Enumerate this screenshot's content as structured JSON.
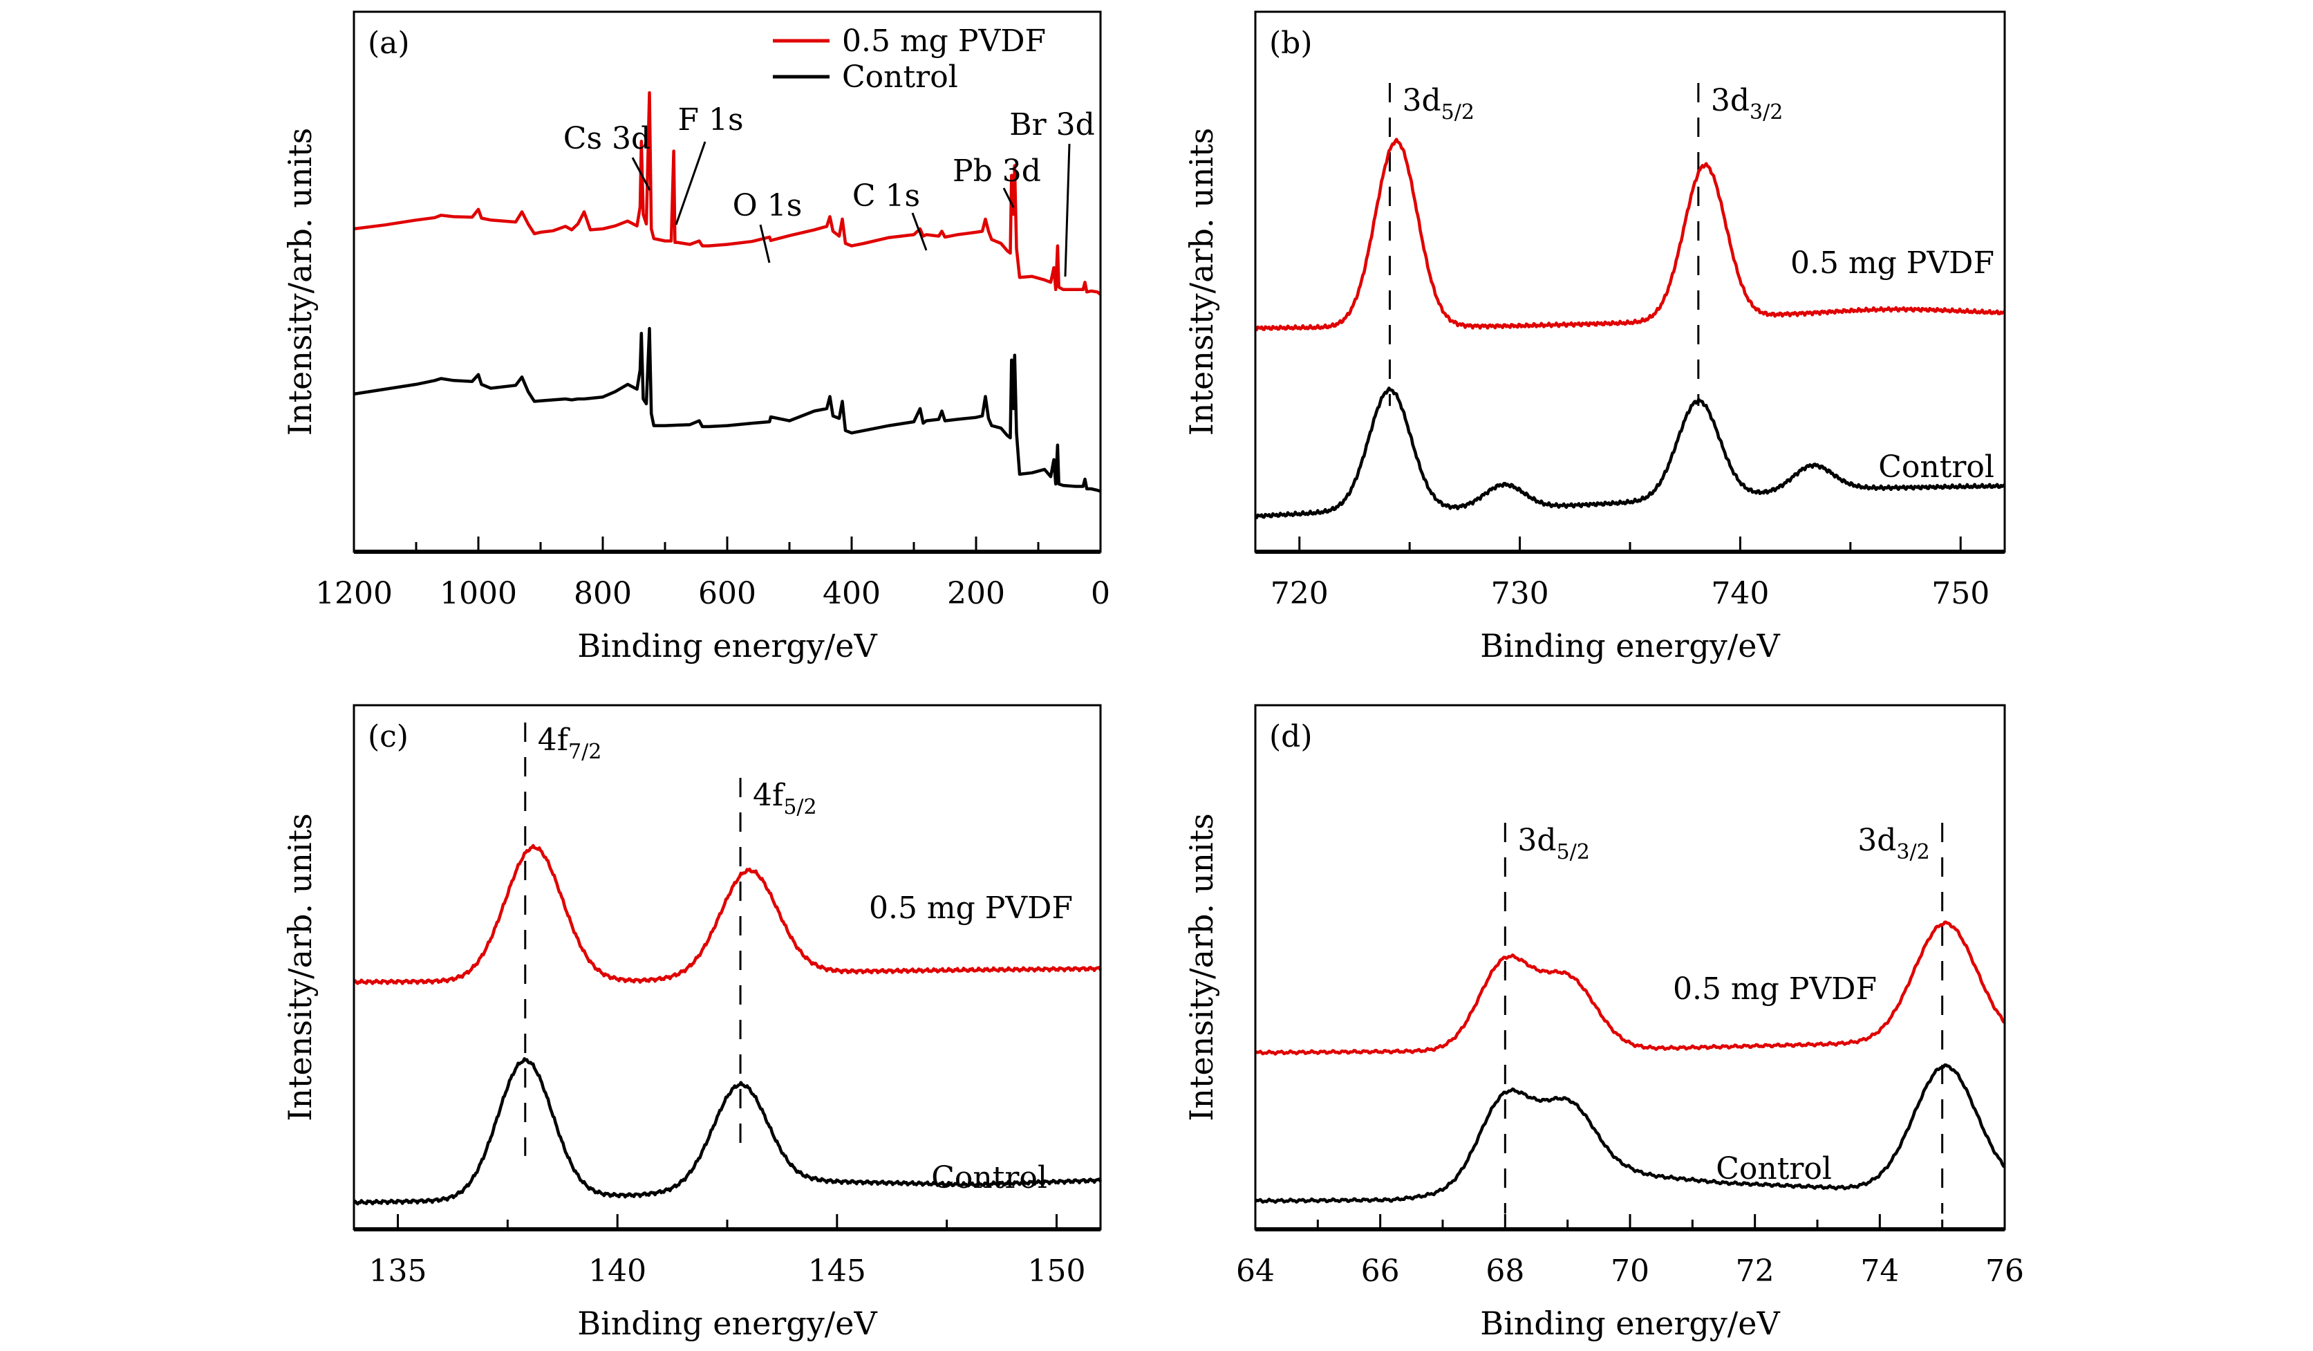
{
  "chart_data": [
    {
      "type": "line",
      "panel_label": "(a)",
      "xlabel": "Binding energy/eV",
      "ylabel": "Intensity/arb. units",
      "xlim": [
        1200,
        0
      ],
      "ylim": [
        0,
        100
      ],
      "x_reversed": true,
      "xticks": [
        1200,
        1000,
        800,
        600,
        400,
        200,
        0
      ],
      "legend": {
        "placement": "top-right",
        "entries": [
          {
            "name": "0.5 mg PVDF",
            "color": "#e00000"
          },
          {
            "name": "Control",
            "color": "#000000"
          }
        ]
      },
      "annotations": [
        {
          "text": "Cs 3d",
          "x": 725
        },
        {
          "text": "F 1s",
          "x": 686
        },
        {
          "text": "O 1s",
          "x": 532
        },
        {
          "text": "C 1s",
          "x": 285
        },
        {
          "text": "Pb 3d",
          "x": 139
        },
        {
          "text": "Br 3d",
          "x": 69
        }
      ],
      "series": [
        {
          "name": "0.5 mg PVDF",
          "color": "#e00000",
          "x": [
            1200,
            1150,
            1100,
            1070,
            1060,
            1040,
            1010,
            1000,
            995,
            980,
            940,
            930,
            920,
            910,
            900,
            880,
            860,
            850,
            840,
            830,
            820,
            800,
            780,
            760,
            745,
            740,
            738,
            735,
            730,
            725,
            722,
            718,
            700,
            690,
            686,
            684,
            680,
            660,
            645,
            640,
            630,
            600,
            560,
            532,
            530,
            500,
            460,
            440,
            435,
            430,
            420,
            415,
            410,
            400,
            380,
            340,
            300,
            290,
            285,
            280,
            260,
            255,
            250,
            230,
            200,
            190,
            185,
            180,
            175,
            160,
            150,
            145,
            143,
            140,
            138,
            135,
            130,
            110,
            90,
            80,
            75,
            72,
            69,
            67,
            60,
            40,
            28,
            25,
            22,
            15,
            5,
            0
          ],
          "y": [
            62.0,
            62.8,
            63.8,
            64.3,
            64.8,
            64.5,
            64.4,
            66.0,
            64.2,
            63.8,
            63.4,
            65.5,
            63.0,
            61.0,
            61.3,
            61.6,
            62.5,
            61.8,
            63.0,
            65.5,
            61.8,
            62.0,
            62.6,
            63.6,
            62.6,
            66.5,
            80.0,
            65.0,
            63.0,
            90.0,
            62.0,
            60.0,
            59.5,
            59.5,
            78.0,
            59.2,
            59.2,
            58.8,
            59.5,
            58.5,
            58.5,
            58.8,
            59.4,
            60.3,
            59.6,
            60.6,
            61.8,
            62.5,
            64.5,
            61.5,
            60.5,
            64.0,
            59.0,
            58.5,
            59.0,
            60.2,
            60.8,
            62.0,
            60.5,
            60.8,
            60.5,
            61.5,
            60.3,
            60.8,
            61.3,
            61.5,
            64.0,
            61.5,
            59.8,
            59.0,
            57.5,
            57.0,
            73.0,
            65.0,
            75.0,
            58.0,
            52.0,
            52.2,
            51.5,
            51.0,
            54.0,
            49.5,
            58.5,
            50.0,
            49.5,
            49.5,
            49.5,
            51.0,
            49.0,
            49.2,
            49.0,
            48.5
          ]
        },
        {
          "name": "Control",
          "color": "#000000",
          "x": [
            1200,
            1150,
            1100,
            1070,
            1060,
            1040,
            1010,
            1000,
            995,
            980,
            940,
            930,
            920,
            910,
            900,
            880,
            860,
            850,
            840,
            830,
            800,
            780,
            760,
            745,
            740,
            738,
            735,
            730,
            725,
            722,
            718,
            700,
            680,
            660,
            645,
            640,
            630,
            600,
            560,
            532,
            530,
            500,
            460,
            440,
            435,
            430,
            420,
            415,
            410,
            400,
            380,
            340,
            300,
            290,
            285,
            280,
            260,
            255,
            250,
            230,
            200,
            190,
            185,
            180,
            175,
            160,
            150,
            145,
            143,
            140,
            138,
            135,
            130,
            110,
            90,
            80,
            75,
            72,
            69,
            67,
            60,
            40,
            28,
            25,
            22,
            15,
            5,
            0
          ],
          "y": [
            28.0,
            29.0,
            30.0,
            30.8,
            31.2,
            30.8,
            30.6,
            32.0,
            30.0,
            29.2,
            29.8,
            31.5,
            28.5,
            26.5,
            26.6,
            26.8,
            27.0,
            26.8,
            27.0,
            27.0,
            27.4,
            28.5,
            30.0,
            29.0,
            33.0,
            40.5,
            27.0,
            26.0,
            41.5,
            24.0,
            21.5,
            21.5,
            21.6,
            21.7,
            22.5,
            21.3,
            21.3,
            21.5,
            22.0,
            22.3,
            23.3,
            22.5,
            24.5,
            25.0,
            27.5,
            23.5,
            23.0,
            26.5,
            20.5,
            20.0,
            20.5,
            21.5,
            22.3,
            25.0,
            22.0,
            22.5,
            22.8,
            24.5,
            22.5,
            22.8,
            23.2,
            23.5,
            27.5,
            23.0,
            21.5,
            21.0,
            19.5,
            19.0,
            35.0,
            25.0,
            36.0,
            20.0,
            11.5,
            11.8,
            12.5,
            11.0,
            14.5,
            9.5,
            17.5,
            9.5,
            9.2,
            9.0,
            9.0,
            10.5,
            8.5,
            8.5,
            8.2,
            8.0
          ]
        }
      ]
    },
    {
      "type": "line",
      "panel_label": "(b)",
      "xlabel": "Binding energy/eV",
      "ylabel": "Intensity/arb. units",
      "xlim": [
        718,
        752
      ],
      "ylim": [
        0,
        100
      ],
      "xticks": [
        720,
        730,
        740,
        750
      ],
      "annotations": [
        {
          "text": "3d",
          "sub": "5/2",
          "x": 724.1
        },
        {
          "text": "3d",
          "sub": "3/2",
          "x": 738.1
        },
        {
          "text": "0.5 mg PVDF",
          "series": "0.5 mg PVDF"
        },
        {
          "text": "Control",
          "series": "Control"
        }
      ],
      "series": [
        {
          "name": "0.5 mg PVDF",
          "color": "#e00000",
          "peaks": [
            {
              "center": 724.4,
              "height": 40.0,
              "width": 0.95
            },
            {
              "center": 738.4,
              "height": 33.5,
              "width": 0.95
            },
            {
              "center": 747.0,
              "height": 1.2,
              "width": 3.0
            }
          ],
          "baseline": [
            [
              718,
              43.5
            ],
            [
              730,
              44.0
            ],
            [
              738,
              45.0
            ],
            [
              742,
              46.2
            ],
            [
              752,
              46.5
            ]
          ]
        },
        {
          "name": "Control",
          "color": "#000000",
          "peaks": [
            {
              "center": 724.1,
              "height": 26.0,
              "width": 0.95
            },
            {
              "center": 729.3,
              "height": 5.0,
              "width": 0.9
            },
            {
              "center": 738.1,
              "height": 21.0,
              "width": 0.95
            },
            {
              "center": 743.3,
              "height": 5.5,
              "width": 0.9
            }
          ],
          "baseline": [
            [
              718,
              3.0
            ],
            [
              722,
              4.0
            ],
            [
              731,
              5.0
            ],
            [
              736,
              6.2
            ],
            [
              745,
              9.0
            ],
            [
              752,
              9.5
            ]
          ]
        }
      ]
    },
    {
      "type": "line",
      "panel_label": "(c)",
      "xlabel": "Binding energy/eV",
      "ylabel": "Intensity/arb. units",
      "xlim": [
        134,
        151
      ],
      "ylim": [
        0,
        100
      ],
      "xticks": [
        135,
        140,
        145,
        150
      ],
      "annotations": [
        {
          "text": "4f",
          "sub": "7/2",
          "x": 137.9
        },
        {
          "text": "4f",
          "sub": "5/2",
          "x": 142.8
        },
        {
          "text": "0.5 mg PVDF",
          "series": "0.5 mg PVDF"
        },
        {
          "text": "Control",
          "series": "Control"
        }
      ],
      "series": [
        {
          "name": "0.5 mg PVDF",
          "color": "#e00000",
          "peaks": [
            {
              "center": 138.1,
              "height": 30.0,
              "width": 0.65
            },
            {
              "center": 143.0,
              "height": 23.5,
              "width": 0.65
            }
          ],
          "baseline": [
            [
              134,
              52.0
            ],
            [
              137,
              52.2
            ],
            [
              140.5,
              52.3
            ],
            [
              144.5,
              54.3
            ],
            [
              151,
              55.0
            ]
          ]
        },
        {
          "name": "Control",
          "color": "#000000",
          "peaks": [
            {
              "center": 137.9,
              "height": 31.0,
              "width": 0.62
            },
            {
              "center": 142.8,
              "height": 23.0,
              "width": 0.62
            }
          ],
          "baseline": [
            [
              134,
              2.5
            ],
            [
              136.5,
              3.0
            ],
            [
              140.5,
              4.2
            ],
            [
              144.5,
              7.3
            ],
            [
              148,
              6.5
            ],
            [
              151,
              7.5
            ]
          ]
        }
      ]
    },
    {
      "type": "line",
      "panel_label": "(d)",
      "xlabel": "Binding energy/eV",
      "ylabel": "Intensity/arb. units",
      "xlim": [
        64,
        76
      ],
      "ylim": [
        0,
        100
      ],
      "xticks": [
        64,
        66,
        68,
        70,
        72,
        74,
        76
      ],
      "annotations": [
        {
          "text": "3d",
          "sub": "5/2",
          "x": 68.0
        },
        {
          "text": "3d",
          "sub": "3/2",
          "x": 75.0
        },
        {
          "text": "0.5 mg PVDF",
          "series": "0.5 mg PVDF"
        },
        {
          "text": "Control",
          "series": "Control"
        }
      ],
      "series": [
        {
          "name": "0.5 mg PVDF",
          "color": "#e00000",
          "peaks": [
            {
              "center": 68.0,
              "height": 24.0,
              "width": 0.42
            },
            {
              "center": 69.0,
              "height": 19.5,
              "width": 0.45
            },
            {
              "center": 75.05,
              "height": 33.0,
              "width": 0.5
            }
          ],
          "baseline": [
            [
              64,
              44.5
            ],
            [
              66,
              44.8
            ],
            [
              70,
              45.5
            ],
            [
              73.5,
              47.0
            ],
            [
              76,
              47.5
            ]
          ]
        },
        {
          "name": "Control",
          "color": "#000000",
          "peaks": [
            {
              "center": 68.0,
              "height": 24.5,
              "width": 0.42
            },
            {
              "center": 69.0,
              "height": 21.0,
              "width": 0.45
            },
            {
              "center": 75.05,
              "height": 33.5,
              "width": 0.5
            }
          ],
          "baseline": [
            [
              64,
              3.5
            ],
            [
              66.2,
              3.8
            ],
            [
              70,
              11.0
            ],
            [
              71.5,
              8.5
            ],
            [
              73.5,
              7.0
            ],
            [
              76,
              7.5
            ]
          ]
        }
      ]
    }
  ]
}
